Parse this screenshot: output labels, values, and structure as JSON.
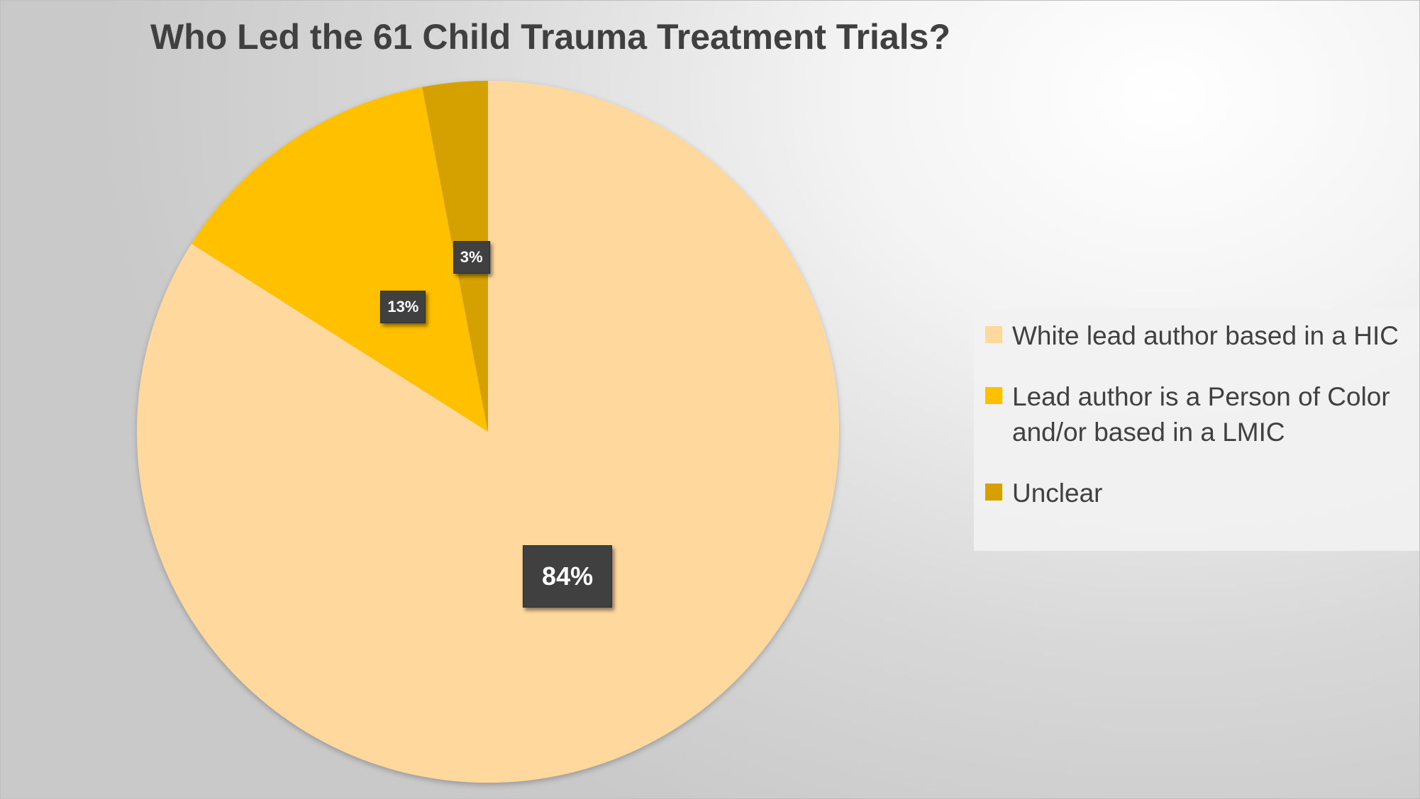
{
  "chart_data": {
    "type": "pie",
    "title": "Who Led the 61 Child Trauma Treatment Trials?",
    "slices": [
      {
        "label": "White lead author based in a HIC",
        "value": 84,
        "display": "84%",
        "color": "#FFD89E"
      },
      {
        "label": "Lead author is a Person of Color and/or based in a LMIC",
        "value": 13,
        "display": "13%",
        "color": "#FFC000"
      },
      {
        "label": "Unclear",
        "value": 3,
        "display": "3%",
        "color": "#D4A100"
      }
    ],
    "legend_position": "right"
  }
}
